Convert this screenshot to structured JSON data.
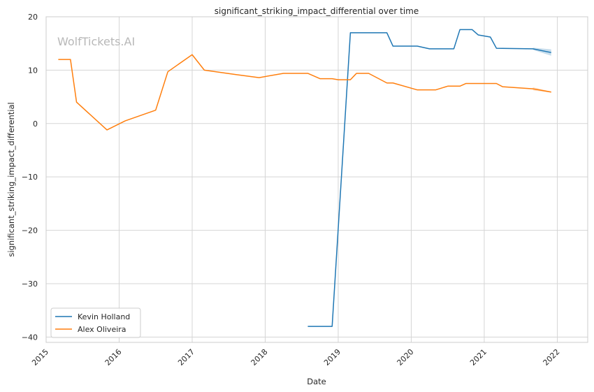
{
  "chart_data": {
    "type": "line",
    "title": "significant_striking_impact_differential over time",
    "xlabel": "Date",
    "ylabel": "significant_striking_impact_differential",
    "watermark": "WolfTickets.AI",
    "xlim": [
      "2015-01-01",
      "2022-06-01"
    ],
    "ylim": [
      -41,
      20
    ],
    "x_ticks": [
      "2015",
      "2016",
      "2017",
      "2018",
      "2019",
      "2020",
      "2021",
      "2022"
    ],
    "y_ticks": [
      20,
      10,
      0,
      -10,
      -20,
      -30,
      -40
    ],
    "y_tick_labels": [
      "20",
      "10",
      "0",
      "−10",
      "−20",
      "−30",
      "−40"
    ],
    "grid": true,
    "legend_position": "lower-left",
    "series": [
      {
        "name": "Kevin Holland",
        "color": "#1f77b4",
        "x": [
          "2018-08-01",
          "2018-12-01",
          "2019-03-01",
          "2019-04-01",
          "2019-09-01",
          "2019-10-01",
          "2020-02-01",
          "2020-04-01",
          "2020-08-01",
          "2020-09-01",
          "2020-11-01",
          "2020-12-01",
          "2021-02-01",
          "2021-03-01",
          "2021-09-01",
          "2021-12-01"
        ],
        "values": [
          -38,
          -38,
          17,
          17,
          17,
          14.5,
          14.5,
          14,
          14,
          17.6,
          17.6,
          16.6,
          16.2,
          14.1,
          14,
          13.3
        ],
        "band": {
          "x": [
            "2021-09-01",
            "2021-12-01"
          ],
          "lower": [
            13.8,
            12.7
          ],
          "upper": [
            14.2,
            13.9
          ]
        }
      },
      {
        "name": "Alex Oliveira",
        "color": "#ff7f0e",
        "x": [
          "2015-03-01",
          "2015-05-01",
          "2015-06-01",
          "2015-11-01",
          "2016-02-01",
          "2016-07-01",
          "2016-09-01",
          "2017-01-01",
          "2017-03-01",
          "2017-08-01",
          "2017-12-01",
          "2018-04-01",
          "2018-08-01",
          "2018-10-01",
          "2018-12-01",
          "2019-01-01",
          "2019-03-01",
          "2019-04-01",
          "2019-06-01",
          "2019-09-01",
          "2019-10-01",
          "2020-02-01",
          "2020-05-01",
          "2020-07-01",
          "2020-09-01",
          "2020-10-01",
          "2021-03-01",
          "2021-04-01",
          "2021-09-01",
          "2021-12-01"
        ],
        "values": [
          12,
          12,
          4,
          -1.2,
          0.5,
          2.5,
          9.7,
          12.9,
          10,
          9.2,
          8.6,
          9.4,
          9.4,
          8.4,
          8.4,
          8.2,
          8.2,
          9.4,
          9.4,
          7.6,
          7.6,
          6.3,
          6.3,
          7,
          7,
          7.5,
          7.5,
          6.9,
          6.5,
          5.9
        ],
        "band": {
          "x": [
            "2021-09-01",
            "2021-12-01"
          ],
          "lower": [
            6.2,
            5.8
          ],
          "upper": [
            6.8,
            6.0
          ]
        }
      }
    ]
  }
}
